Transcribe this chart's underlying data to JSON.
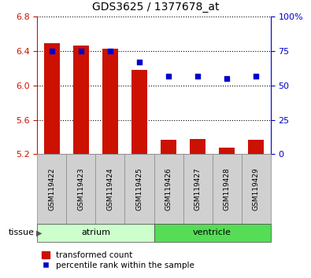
{
  "title": "GDS3625 / 1377678_at",
  "samples": [
    "GSM119422",
    "GSM119423",
    "GSM119424",
    "GSM119425",
    "GSM119426",
    "GSM119427",
    "GSM119428",
    "GSM119429"
  ],
  "transformed_count": [
    6.49,
    6.46,
    6.43,
    6.18,
    5.37,
    5.38,
    5.28,
    5.37
  ],
  "percentile_rank": [
    75,
    75,
    75,
    67,
    57,
    57,
    55,
    57
  ],
  "bar_bottom": 5.2,
  "ylim_left": [
    5.2,
    6.8
  ],
  "ylim_right": [
    0,
    100
  ],
  "yticks_left": [
    5.2,
    5.6,
    6.0,
    6.4,
    6.8
  ],
  "yticks_right": [
    0,
    25,
    50,
    75,
    100
  ],
  "ytick_labels_right": [
    "0",
    "25",
    "50",
    "75",
    "100%"
  ],
  "bar_color": "#cc1100",
  "dot_color": "#0000cc",
  "groups": [
    {
      "label": "atrium",
      "start": 0,
      "end": 4,
      "color": "#ccffcc"
    },
    {
      "label": "ventricle",
      "start": 4,
      "end": 8,
      "color": "#55dd55"
    }
  ],
  "tissue_label": "tissue",
  "legend_bar_label": "transformed count",
  "legend_dot_label": "percentile rank within the sample",
  "grid_color": "#000000",
  "title_color": "#000000",
  "left_tick_color": "#cc1100",
  "right_tick_color": "#0000cc",
  "sample_box_color": "#d0d0d0",
  "sample_box_edge": "#888888",
  "bg_color": "#ffffff"
}
